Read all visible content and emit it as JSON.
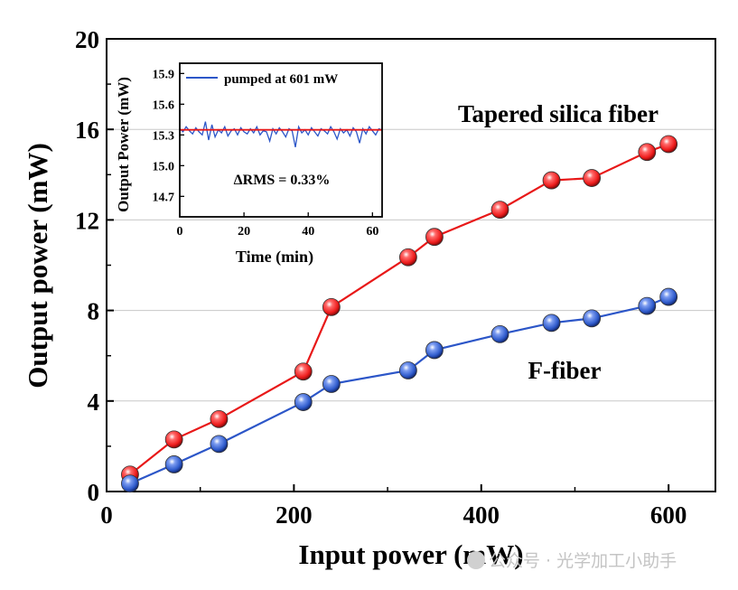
{
  "chart_data": {
    "type": "line",
    "title": "",
    "xlabel": "Input power (mW)",
    "ylabel": "Output power (mW)",
    "xlim": [
      0,
      650
    ],
    "ylim": [
      0,
      20
    ],
    "xticks": [
      0,
      200,
      400,
      600
    ],
    "xtick_labels": [
      "0",
      "200",
      "400",
      "600"
    ],
    "yticks": [
      0,
      4,
      8,
      12,
      16,
      20
    ],
    "ytick_labels": [
      "0",
      "4",
      "8",
      "12",
      "16",
      "20"
    ],
    "grid": "horizontal",
    "series": [
      {
        "name": "Tapered silica fiber",
        "color": "#e81818",
        "x": [
          25,
          72,
          120,
          210,
          240,
          322,
          350,
          420,
          475,
          518,
          577,
          600
        ],
        "y": [
          0.75,
          2.3,
          3.2,
          5.3,
          8.15,
          10.35,
          11.25,
          12.45,
          13.75,
          13.85,
          15.0,
          15.35
        ]
      },
      {
        "name": "F-fiber",
        "color": "#2c56c8",
        "x": [
          25,
          72,
          120,
          210,
          240,
          322,
          350,
          420,
          475,
          518,
          577,
          600
        ],
        "y": [
          0.35,
          1.2,
          2.1,
          3.95,
          4.75,
          5.35,
          6.25,
          6.95,
          7.45,
          7.65,
          8.2,
          8.6
        ]
      }
    ],
    "annotations": [
      "Tapered silica fiber",
      "F-fiber"
    ],
    "inset": {
      "type": "line",
      "xlabel": "Time (min)",
      "ylabel": "Output Power (mW)",
      "xlim": [
        0,
        63
      ],
      "ylim": [
        14.5,
        16.0
      ],
      "xticks": [
        0,
        20,
        40,
        60
      ],
      "xtick_labels": [
        "0",
        "20",
        "40",
        "60"
      ],
      "yticks": [
        14.7,
        15.0,
        15.3,
        15.6,
        15.9
      ],
      "ytick_labels": [
        "14.7",
        "15.0",
        "15.3",
        "15.6",
        "15.9"
      ],
      "legend": "pumped at 601 mW",
      "legend_placement": "top-left",
      "mean_value": 15.35,
      "mean_color": "#e81818",
      "trace_color": "#2c56c8",
      "annotation": "ΔRMS = 0.33%",
      "trace": {
        "x": [
          0,
          1,
          2,
          3,
          4,
          5,
          6,
          7,
          8,
          9,
          10,
          11,
          12,
          13,
          14,
          15,
          16,
          17,
          18,
          19,
          20,
          21,
          22,
          23,
          24,
          25,
          26,
          27,
          28,
          29,
          30,
          31,
          32,
          33,
          34,
          35,
          36,
          37,
          38,
          39,
          40,
          41,
          42,
          43,
          44,
          45,
          46,
          47,
          48,
          49,
          50,
          51,
          52,
          53,
          54,
          55,
          56,
          57,
          58,
          59,
          60,
          61,
          62,
          63
        ],
        "y": [
          15.36,
          15.33,
          15.38,
          15.34,
          15.31,
          15.37,
          15.33,
          15.3,
          15.43,
          15.25,
          15.4,
          15.28,
          15.35,
          15.32,
          15.38,
          15.29,
          15.34,
          15.36,
          15.3,
          15.37,
          15.33,
          15.31,
          15.36,
          15.32,
          15.38,
          15.3,
          15.34,
          15.33,
          15.24,
          15.36,
          15.31,
          15.37,
          15.33,
          15.28,
          15.36,
          15.34,
          15.18,
          15.38,
          15.32,
          15.35,
          15.3,
          15.37,
          15.33,
          15.29,
          15.36,
          15.34,
          15.31,
          15.38,
          15.33,
          15.26,
          15.36,
          15.32,
          15.35,
          15.29,
          15.37,
          15.33,
          15.22,
          15.36,
          15.31,
          15.38,
          15.34,
          15.3,
          15.36,
          15.35
        ]
      }
    }
  },
  "watermark": "公众号 · 光学加工小助手"
}
